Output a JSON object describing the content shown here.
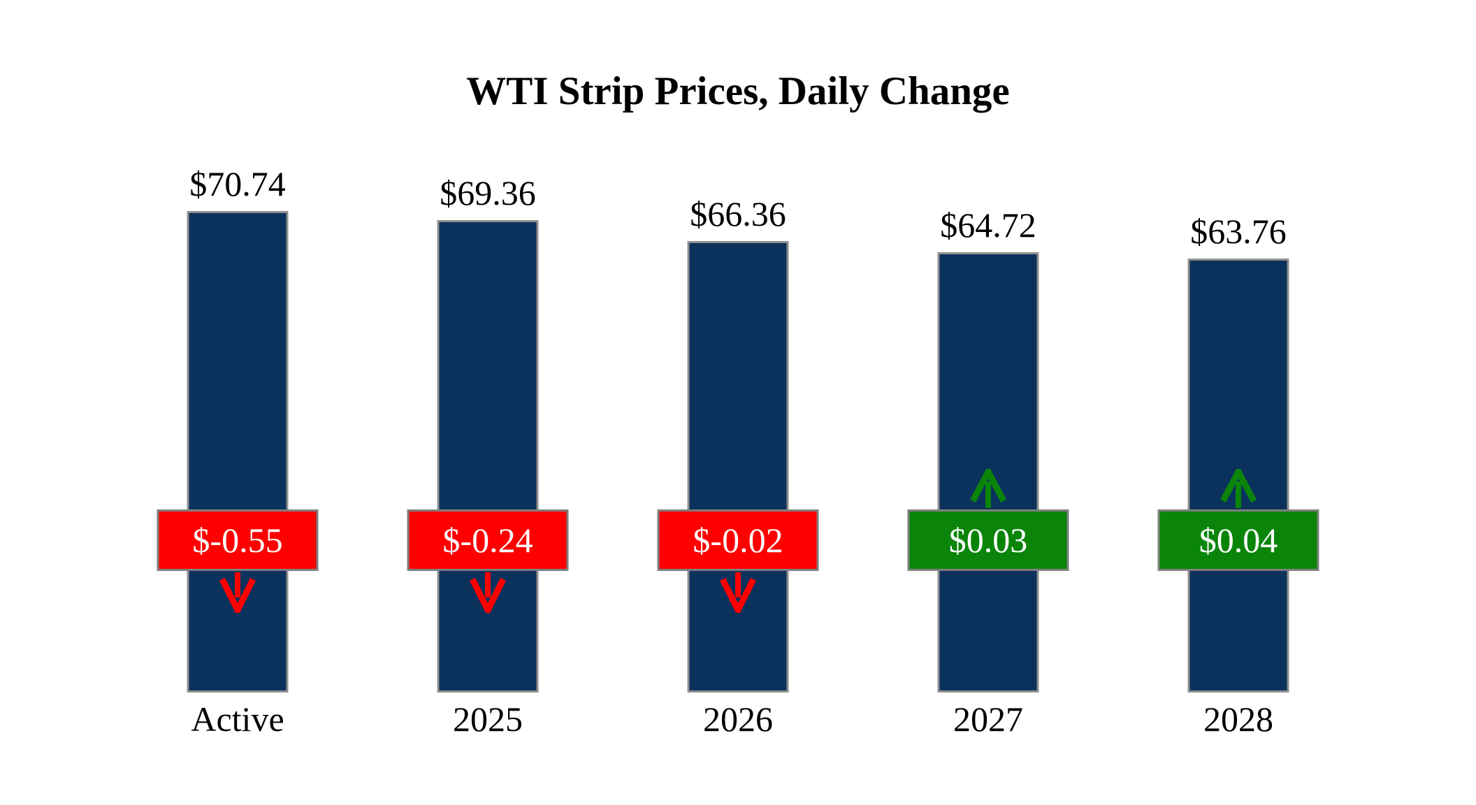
{
  "chart_data": {
    "type": "bar",
    "title": "WTI Strip Prices, Daily Change",
    "categories": [
      "Active",
      "2025",
      "2026",
      "2027",
      "2028"
    ],
    "values": [
      70.74,
      69.36,
      66.36,
      64.72,
      63.76
    ],
    "value_labels": [
      "$70.74",
      "$69.36",
      "$66.36",
      "$64.72",
      "$63.76"
    ],
    "changes": [
      -0.55,
      -0.24,
      -0.02,
      0.03,
      0.04
    ],
    "change_labels": [
      "$-0.55",
      "$-0.24",
      "$-0.02",
      "$0.03",
      "$0.04"
    ],
    "directions": [
      "down",
      "down",
      "down",
      "up",
      "up"
    ],
    "xlabel": "",
    "ylabel": "",
    "ylim": [
      0,
      74
    ],
    "grid": false,
    "legend": "none",
    "colors": {
      "bar_fill": "#0B325D",
      "bar_border": "#8F8F8F",
      "negative_box": "#FF0000",
      "positive_box": "#0A850A",
      "box_border": "#7F7F7F",
      "change_text": "#FFFFFF",
      "label_text": "#000000"
    }
  }
}
